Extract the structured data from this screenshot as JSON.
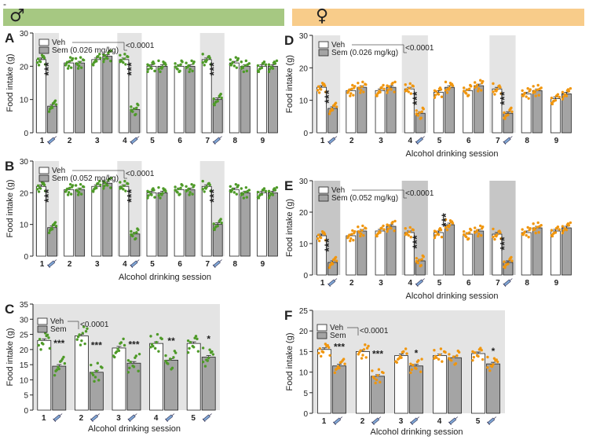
{
  "header": {
    "dash": "-",
    "male_symbol": "♂",
    "female_symbol": "♀",
    "male_color": "#a6c882",
    "female_color": "#f8cc8a"
  },
  "colors": {
    "male_dot": "#4e9a28",
    "female_dot": "#f0960f",
    "veh_bar": "#ffffff",
    "sem_bar": "#a4a4a4",
    "shade": "#e4e4e4",
    "shade_dark": "#c6c6c6"
  },
  "chart_data": [
    {
      "id": "A",
      "type": "bar",
      "sex": "male",
      "ylabel": "Food intake (g)",
      "xlabel": "",
      "ylim": [
        0,
        30
      ],
      "yticks": [
        0,
        10,
        20,
        30
      ],
      "categories": [
        "1",
        "2",
        "3",
        "4",
        "5",
        "6",
        "7",
        "8",
        "9"
      ],
      "shaded_sessions": [
        1,
        4,
        7
      ],
      "syringe_sessions": [
        1,
        4,
        7
      ],
      "legend": [
        "Veh",
        "Sem (0.026 mg/kg)"
      ],
      "pvalue": "<0.0001",
      "series": [
        {
          "name": "Veh",
          "values": [
            22,
            21,
            22,
            22,
            20,
            20,
            22,
            21,
            20
          ]
        },
        {
          "name": "Sem (0.026 mg/kg)",
          "values": [
            8,
            21,
            23,
            7,
            20,
            20,
            10,
            20,
            20
          ]
        }
      ],
      "annotations": [
        {
          "session": 1,
          "label": "***"
        },
        {
          "session": 4,
          "label": "***"
        },
        {
          "session": 7,
          "label": "***"
        }
      ]
    },
    {
      "id": "B",
      "type": "bar",
      "sex": "male",
      "ylabel": "Food intake (g)",
      "xlabel": "Alcohol drinking session",
      "ylim": [
        0,
        30
      ],
      "yticks": [
        0,
        10,
        20,
        30
      ],
      "categories": [
        "1",
        "2",
        "3",
        "4",
        "5",
        "6",
        "7",
        "8",
        "9"
      ],
      "shaded_sessions": [
        1,
        4,
        7
      ],
      "syringe_sessions": [
        1,
        4,
        7
      ],
      "legend": [
        "Veh",
        "Sem (0.052 mg/kg)"
      ],
      "pvalue": "<0.0001",
      "series": [
        {
          "name": "Veh",
          "values": [
            22,
            21,
            22,
            22,
            20,
            21,
            22,
            21,
            20
          ]
        },
        {
          "name": "Sem (0.052 mg/kg)",
          "values": [
            9,
            21,
            23,
            7,
            20,
            21,
            10,
            20,
            20
          ]
        }
      ],
      "annotations": [
        {
          "session": 1,
          "label": "***"
        },
        {
          "session": 4,
          "label": "***"
        },
        {
          "session": 7,
          "label": "***"
        }
      ]
    },
    {
      "id": "C",
      "type": "bar",
      "sex": "male",
      "ylabel": "Food intake (g)",
      "xlabel": "Alcohol drinking session",
      "ylim": [
        0,
        35
      ],
      "yticks": [
        0,
        5,
        10,
        15,
        20,
        25,
        30,
        35
      ],
      "categories": [
        "1",
        "2",
        "3",
        "4",
        "5"
      ],
      "shaded_sessions": [
        1,
        2,
        3,
        4,
        5
      ],
      "syringe_sessions": [
        1,
        2,
        3,
        4,
        5
      ],
      "legend": [
        "Veh",
        "Sem"
      ],
      "pvalue": "<0.0001",
      "series": [
        {
          "name": "Veh",
          "values": [
            23,
            24.5,
            20.5,
            22,
            22
          ]
        },
        {
          "name": "Sem",
          "values": [
            14.5,
            12.5,
            15.5,
            16.5,
            17.5
          ]
        }
      ],
      "annotations": [
        {
          "session": 1,
          "label": "***"
        },
        {
          "session": 2,
          "label": "***"
        },
        {
          "session": 3,
          "label": "***"
        },
        {
          "session": 4,
          "label": "**"
        },
        {
          "session": 5,
          "label": "*"
        }
      ]
    },
    {
      "id": "D",
      "type": "bar",
      "sex": "female",
      "ylabel": "Food intake (g)",
      "xlabel": "Alcohol drinking session",
      "ylim": [
        0,
        30
      ],
      "yticks": [
        0,
        10,
        20,
        30
      ],
      "categories": [
        "1",
        "2",
        "3",
        "4",
        "5",
        "6",
        "7",
        "8",
        "9"
      ],
      "shaded_sessions": [
        1,
        4,
        7
      ],
      "syringe_sessions": [
        1,
        4,
        7
      ],
      "legend": [
        "Veh",
        "Sem (0.026 mg/kg)"
      ],
      "pvalue": "<0.0001",
      "series": [
        {
          "name": "Veh",
          "values": [
            14,
            13,
            13,
            13.5,
            12.5,
            13,
            13.5,
            12,
            10.5
          ]
        },
        {
          "name": "Sem (0.026 mg/kg)",
          "values": [
            7.5,
            14,
            14,
            6,
            14,
            14.5,
            6,
            13,
            12
          ]
        }
      ],
      "annotations": [
        {
          "session": 1,
          "label": "***"
        },
        {
          "session": 4,
          "label": "***"
        },
        {
          "session": 7,
          "label": "***"
        }
      ]
    },
    {
      "id": "E",
      "type": "bar",
      "sex": "female",
      "ylabel": "Food intake (g)",
      "xlabel": "Alcohol drinking session",
      "ylim": [
        0,
        30
      ],
      "yticks": [
        0,
        10,
        20,
        30
      ],
      "categories": [
        "1",
        "2",
        "3",
        "4",
        "5",
        "6",
        "7",
        "8",
        "9"
      ],
      "shaded_sessions": [
        1,
        4,
        7
      ],
      "syringe_sessions": [
        1,
        4,
        7
      ],
      "legend": [
        "Veh",
        "Sem (0.052 mg/kg)"
      ],
      "pvalue": "<0.0001",
      "series": [
        {
          "name": "Veh",
          "values": [
            12.5,
            12.5,
            14,
            13.5,
            13.5,
            13,
            13,
            13.5,
            14
          ]
        },
        {
          "name": "Sem (0.052 mg/kg)",
          "values": [
            4,
            14,
            15.5,
            4.5,
            16,
            14,
            4,
            15,
            15
          ]
        }
      ],
      "annotations": [
        {
          "session": 1,
          "label": "***"
        },
        {
          "session": 4,
          "label": "***"
        },
        {
          "session": 5,
          "label": "***"
        },
        {
          "session": 7,
          "label": "***"
        }
      ]
    },
    {
      "id": "F",
      "type": "bar",
      "sex": "female",
      "ylabel": "Food intake (g)",
      "xlabel": "Alcohol drinking session",
      "ylim": [
        0,
        25
      ],
      "yticks": [
        0,
        5,
        10,
        15,
        20,
        25
      ],
      "categories": [
        "1",
        "2",
        "3",
        "4",
        "5"
      ],
      "shaded_sessions": [
        1,
        2,
        3,
        4,
        5
      ],
      "syringe_sessions": [
        1,
        2,
        3,
        4,
        5
      ],
      "legend": [
        "Veh",
        "Sem"
      ],
      "pvalue": "<0.0001",
      "series": [
        {
          "name": "Veh",
          "values": [
            15.5,
            15,
            14,
            14,
            14.5
          ]
        },
        {
          "name": "Sem",
          "values": [
            11.5,
            9,
            11.5,
            13.5,
            12
          ]
        }
      ],
      "annotations": [
        {
          "session": 1,
          "label": "***"
        },
        {
          "session": 2,
          "label": "***"
        },
        {
          "session": 3,
          "label": "*"
        },
        {
          "session": 5,
          "label": "*"
        }
      ]
    }
  ]
}
